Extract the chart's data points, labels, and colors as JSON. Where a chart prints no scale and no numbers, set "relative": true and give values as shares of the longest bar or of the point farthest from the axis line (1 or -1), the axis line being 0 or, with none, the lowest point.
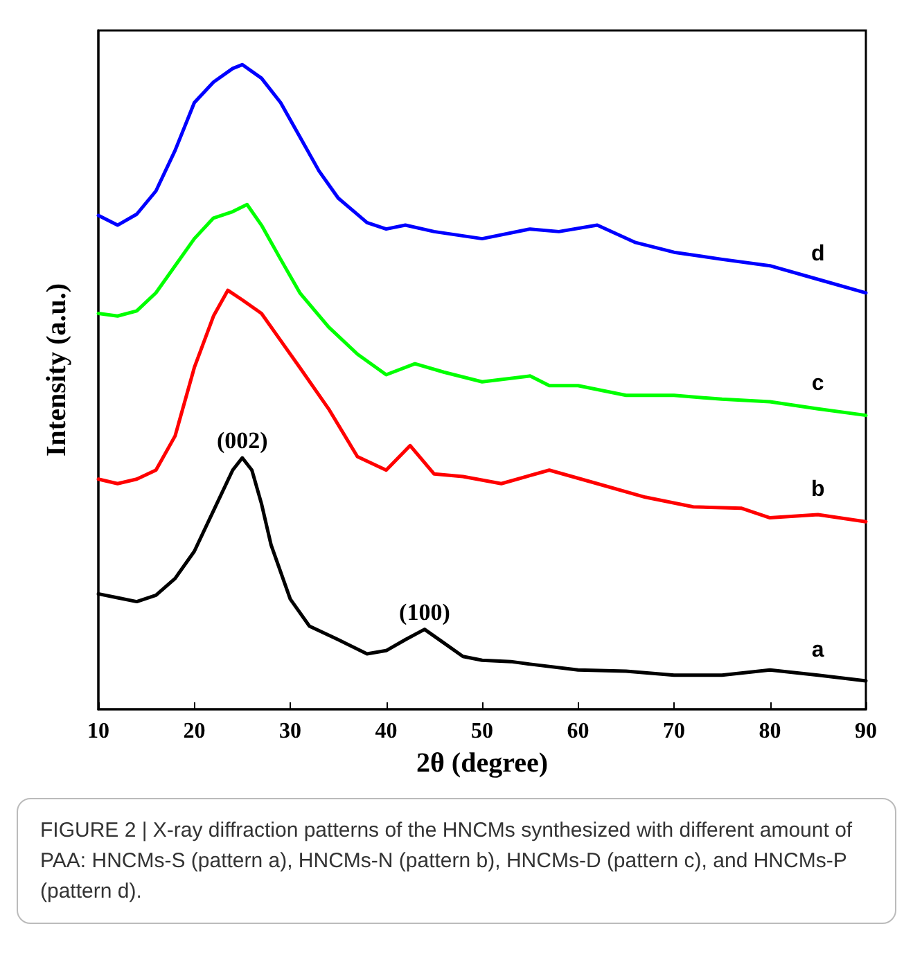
{
  "chart_data": {
    "type": "line",
    "relative": true,
    "xlabel": "2θ (degree)",
    "ylabel": "Intensity (a.u.)",
    "xlim": [
      10,
      90
    ],
    "xticks": [
      10,
      20,
      30,
      40,
      50,
      60,
      70,
      80,
      90
    ],
    "grid": false,
    "legend": false,
    "marker": "none",
    "line_style": "solid",
    "series": [
      {
        "name": "a",
        "color": "#000000",
        "x": [
          10,
          12,
          14,
          16,
          18,
          20,
          22,
          24,
          25,
          26,
          27,
          28,
          30,
          32,
          35,
          38,
          40,
          42,
          44,
          46,
          48,
          50,
          53,
          55,
          60,
          65,
          70,
          75,
          80,
          85,
          90
        ],
        "values": [
          0.179,
          0.173,
          0.167,
          0.177,
          0.203,
          0.245,
          0.308,
          0.371,
          0.39,
          0.371,
          0.319,
          0.255,
          0.171,
          0.129,
          0.108,
          0.086,
          0.091,
          0.108,
          0.124,
          0.103,
          0.082,
          0.076,
          0.074,
          0.07,
          0.061,
          0.059,
          0.053,
          0.053,
          0.061,
          0.053,
          0.044
        ]
      },
      {
        "name": "b",
        "color": "#ff0000",
        "x": [
          10,
          12,
          14,
          16,
          18,
          20,
          22,
          23.5,
          25,
          27,
          29,
          31,
          34,
          37,
          40,
          42.5,
          45,
          48,
          52,
          57,
          62,
          67,
          72,
          77,
          80,
          85,
          90
        ],
        "values": [
          0.357,
          0.35,
          0.357,
          0.371,
          0.424,
          0.53,
          0.61,
          0.65,
          0.635,
          0.614,
          0.572,
          0.53,
          0.466,
          0.392,
          0.371,
          0.409,
          0.365,
          0.361,
          0.35,
          0.371,
          0.35,
          0.329,
          0.314,
          0.312,
          0.297,
          0.302,
          0.291
        ]
      },
      {
        "name": "c",
        "color": "#00ff00",
        "x": [
          10,
          12,
          14,
          16,
          18,
          20,
          22,
          24,
          25.5,
          27,
          29,
          31,
          34,
          37,
          40,
          43,
          46,
          50,
          55,
          57,
          60,
          65,
          70,
          75,
          80,
          85,
          90
        ],
        "values": [
          0.614,
          0.61,
          0.618,
          0.646,
          0.688,
          0.73,
          0.762,
          0.772,
          0.783,
          0.751,
          0.698,
          0.646,
          0.593,
          0.551,
          0.519,
          0.536,
          0.523,
          0.508,
          0.517,
          0.502,
          0.502,
          0.487,
          0.487,
          0.481,
          0.477,
          0.466,
          0.456
        ]
      },
      {
        "name": "d",
        "color": "#0000ff",
        "x": [
          10,
          12,
          14,
          16,
          18,
          20,
          22,
          24,
          25,
          27,
          29,
          31,
          33,
          35,
          38,
          40,
          42,
          45,
          50,
          55,
          58,
          62,
          66,
          70,
          75,
          80,
          85,
          90
        ],
        "values": [
          0.766,
          0.751,
          0.768,
          0.804,
          0.867,
          0.941,
          0.973,
          0.994,
          1.0,
          0.979,
          0.941,
          0.888,
          0.835,
          0.793,
          0.755,
          0.745,
          0.751,
          0.741,
          0.73,
          0.745,
          0.741,
          0.751,
          0.724,
          0.709,
          0.698,
          0.688,
          0.667,
          0.646
        ]
      }
    ],
    "annotations": [
      {
        "text": "(002)",
        "x": 25,
        "y": 0.39
      },
      {
        "text": "(100)",
        "x": 44,
        "y": 0.124
      },
      "FIGURE 2 | X-ray diffraction patterns of the HNCMs synthesized with different amount of PAA: HNCMs-S (pattern a), HNCMs-N (pattern b), HNCMs-D (pattern c), and HNCMs-P (pattern d)."
    ]
  }
}
